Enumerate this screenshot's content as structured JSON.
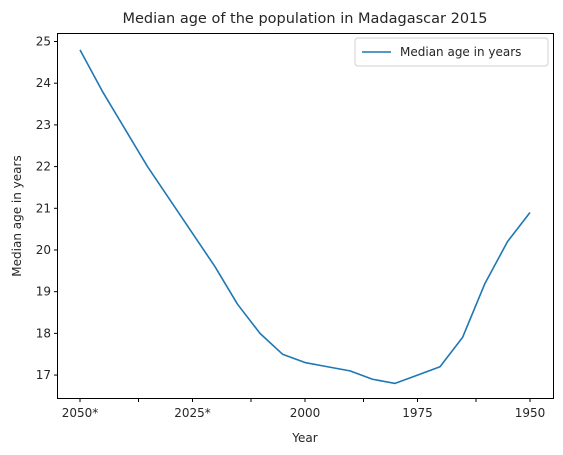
{
  "chart_data": {
    "type": "line",
    "title": "Median age of the population in Madagascar 2015",
    "xlabel": "Year",
    "ylabel": "Median age in years",
    "x_axis_inverted": true,
    "x": [
      "2050*",
      "2045*",
      "2040*",
      "2035*",
      "2030*",
      "2025*",
      "2020*",
      "2015",
      "2010",
      "2005",
      "2000",
      "1995",
      "1990",
      "1985",
      "1980",
      "1975",
      "1970",
      "1965",
      "1960",
      "1955",
      "1950"
    ],
    "x_tick_labels": [
      "2050*",
      "",
      "2025*",
      "",
      "2000",
      "",
      "1975",
      "",
      "1950"
    ],
    "x_tick_values": [
      "2050*",
      "2037",
      "2025*",
      "2012",
      "2000",
      "1987",
      "1975",
      "1962",
      "1950"
    ],
    "ylim": [
      16.45,
      25.18
    ],
    "yticks": [
      17,
      18,
      19,
      20,
      21,
      22,
      23,
      24,
      25
    ],
    "grid": false,
    "legend_position": "top-right",
    "series": [
      {
        "name": "Median age in years",
        "color": "#1f77b4",
        "values": [
          24.8,
          23.8,
          22.9,
          22.0,
          21.2,
          20.4,
          19.6,
          18.7,
          18.0,
          17.5,
          17.3,
          17.2,
          17.1,
          16.9,
          16.8,
          17.0,
          17.2,
          17.9,
          19.2,
          20.2,
          20.9
        ]
      }
    ]
  }
}
